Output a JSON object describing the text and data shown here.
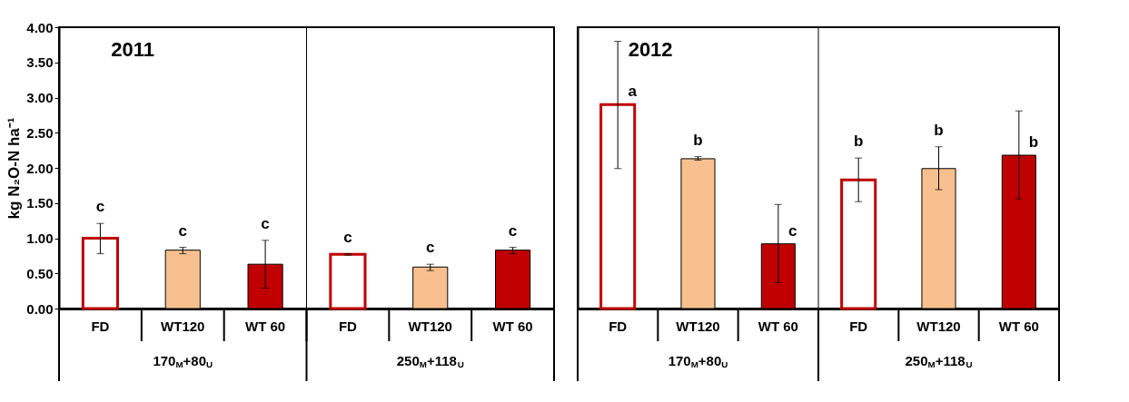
{
  "chart_data": [
    {
      "type": "bar",
      "title": "2011",
      "ylabel": "kg N₂O-N ha⁻¹",
      "categories": [
        "FD",
        "WT120",
        "WT 60",
        "FD",
        "WT120",
        "WT 60"
      ],
      "values": [
        1.0,
        0.83,
        0.63,
        0.77,
        0.59,
        0.83
      ],
      "value_labels": [
        "c",
        "c",
        "c",
        "c",
        "c",
        "c"
      ],
      "colors": [
        "#ffffff",
        "#f8c08f",
        "#c00000",
        "#ffffff",
        "#f8c08f",
        "#c00000"
      ],
      "errors": [
        [
          0.78,
          1.21
        ],
        [
          0.78,
          0.87
        ],
        [
          0.29,
          0.97
        ],
        [
          0.76,
          0.78
        ],
        [
          0.54,
          0.63
        ],
        [
          0.78,
          0.87
        ]
      ],
      "ylim": [
        0,
        4
      ],
      "yticks": [
        {
          "value": 0,
          "label": "0.00"
        },
        {
          "value": 0.5,
          "label": "0.50"
        },
        {
          "value": 1,
          "label": "1.00"
        },
        {
          "value": 1.5,
          "label": "1.50"
        },
        {
          "value": 2,
          "label": "2.00"
        },
        {
          "value": 2.5,
          "label": "2.50"
        },
        {
          "value": 3,
          "label": "3.00"
        },
        {
          "value": 3.5,
          "label": "3.50"
        },
        {
          "value": 4,
          "label": "4.00"
        }
      ],
      "grid": false,
      "annotations": [
        "170$_{M}$+80$_{U}$",
        "250$_{M}$+118$_{U}$"
      ]
    },
    {
      "type": "bar",
      "title": "2012",
      "categories": [
        "FD",
        "WT120",
        "WT 60",
        "FD",
        "WT120",
        "WT 60"
      ],
      "values": [
        2.9,
        2.13,
        0.92,
        1.83,
        1.99,
        2.18
      ],
      "value_labels": [
        "a",
        "b",
        "c",
        "b",
        "b",
        "b"
      ],
      "colors": [
        "#ffffff",
        "#f8c08f",
        "#c00000",
        "#ffffff",
        "#f8c08f",
        "#c00000"
      ],
      "errors": [
        [
          1.99,
          3.8
        ],
        [
          2.11,
          2.16
        ],
        [
          0.37,
          1.48
        ],
        [
          1.52,
          2.14
        ],
        [
          1.69,
          2.3
        ],
        [
          1.56,
          2.81
        ]
      ],
      "ylim": [
        0,
        4
      ],
      "grid": false,
      "tick_labels": "x",
      "annotations": [
        "170$_{M}$+80$_{U}$",
        "250$_{M}$+118$_{U}$"
      ]
    }
  ]
}
